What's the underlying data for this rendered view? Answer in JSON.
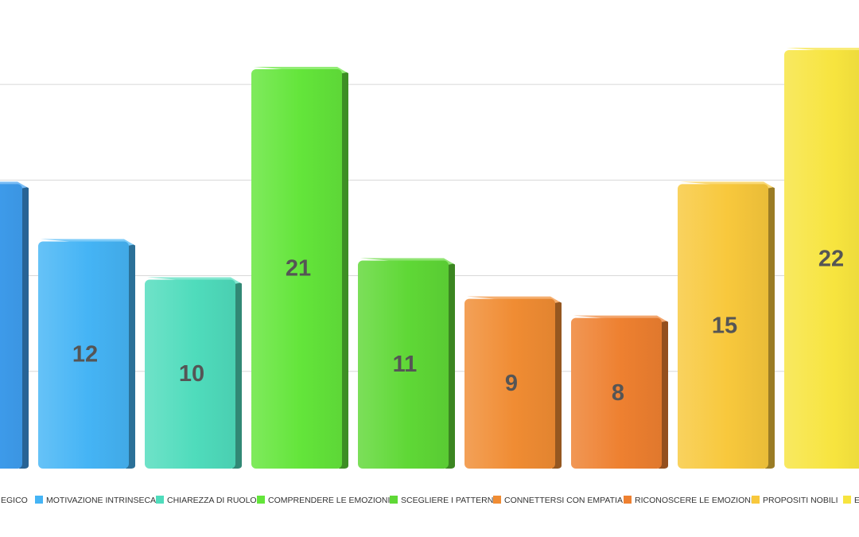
{
  "chart_data": {
    "type": "bar",
    "title": "",
    "xlabel": "",
    "ylabel": "",
    "ylim": [
      0,
      22
    ],
    "grid": true,
    "legend_position": "bottom",
    "categories": [
      "EGICO",
      "MOTIVAZIONE INTRINSECA",
      "CHIAREZZA DI RUOLO",
      "COMPRENDERE LE EMOZIONI",
      "SCEGLIERE I PATTERN",
      "CONNETTERSI CON EMPATIA",
      "RICONOSCERE LE EMOZIONI",
      "PROPOSITI NOBILI",
      "EC"
    ],
    "values": [
      15,
      12,
      10,
      21,
      11,
      9,
      8,
      15,
      22
    ],
    "value_labels": [
      "",
      "12",
      "10",
      "21",
      "11",
      "9",
      "8",
      "15",
      "22"
    ],
    "colors": [
      "#3f9ff0",
      "#45b4f5",
      "#4fdcbc",
      "#63e53a",
      "#5fd836",
      "#f08c33",
      "#ee8030",
      "#f8c83c",
      "#f7e43e"
    ]
  }
}
